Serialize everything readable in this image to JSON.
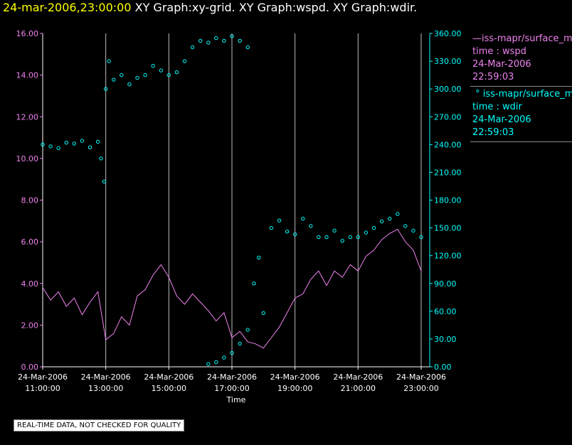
{
  "header": {
    "timestamp": "24-mar-2006,23:00:00",
    "graphs": "XY Graph:xy-grid.  XY Graph:wspd.  XY Graph:wdir."
  },
  "colors": {
    "wspd": "#ee82ee",
    "wdir": "#00ffff",
    "grid": "#bbbbbb",
    "axis": "#ffffff"
  },
  "legend": {
    "s1": {
      "name": "iss-mapr/surface_mapr",
      "var": "time : wspd",
      "date": "24-Mar-2006",
      "time": "22:59:03"
    },
    "s2": {
      "name": "iss-mapr/surface_mapr",
      "var": "time : wdir",
      "date": "24-Mar-2006",
      "time": "22:59:03"
    }
  },
  "qc_note": "REAL-TIME DATA, NOT CHECKED FOR QUALITY",
  "chart_data": {
    "type": "line",
    "xlabel": "Time",
    "xlim": [
      11.0,
      23.0
    ],
    "x_ticks": [
      {
        "v": 11,
        "d": "24-Mar-2006",
        "t": "11:00:00"
      },
      {
        "v": 13,
        "d": "24-Mar-2006",
        "t": "13:00:00"
      },
      {
        "v": 15,
        "d": "24-Mar-2006",
        "t": "15:00:00"
      },
      {
        "v": 17,
        "d": "24-Mar-2006",
        "t": "17:00:00"
      },
      {
        "v": 19,
        "d": "24-Mar-2006",
        "t": "19:00:00"
      },
      {
        "v": 21,
        "d": "24-Mar-2006",
        "t": "21:00:00"
      },
      {
        "v": 23,
        "d": "24-Mar-2006",
        "t": "23:00:00"
      }
    ],
    "left_axis": {
      "ylim": [
        0,
        16
      ],
      "ticks": [
        "0.00",
        "2.00",
        "4.00",
        "6.00",
        "8.00",
        "10.00",
        "12.00",
        "14.00",
        "16.00"
      ]
    },
    "right_axis": {
      "ylim": [
        0,
        360
      ],
      "ticks": [
        "0.00",
        "30.00",
        "60.00",
        "90.00",
        "120.00",
        "150.00",
        "180.00",
        "210.00",
        "240.00",
        "270.00",
        "300.00",
        "330.00",
        "360.00"
      ]
    },
    "series": [
      {
        "name": "wspd",
        "axis": "left",
        "style": "line",
        "x": [
          11.0,
          11.25,
          11.5,
          11.75,
          12.0,
          12.25,
          12.5,
          12.75,
          13.0,
          13.25,
          13.5,
          13.75,
          14.0,
          14.25,
          14.5,
          14.75,
          15.0,
          15.25,
          15.5,
          15.75,
          16.0,
          16.25,
          16.5,
          16.75,
          17.0,
          17.25,
          17.5,
          17.75,
          18.0,
          18.25,
          18.5,
          18.75,
          19.0,
          19.25,
          19.5,
          19.75,
          20.0,
          20.25,
          20.5,
          20.75,
          21.0,
          21.25,
          21.5,
          21.75,
          22.0,
          22.25,
          22.5,
          22.75,
          23.0
        ],
        "y": [
          3.8,
          3.2,
          3.6,
          2.9,
          3.3,
          2.5,
          3.1,
          3.6,
          1.3,
          1.6,
          2.4,
          2.0,
          3.4,
          3.7,
          4.4,
          4.9,
          4.3,
          3.4,
          3.0,
          3.5,
          3.1,
          2.7,
          2.2,
          2.6,
          1.4,
          1.7,
          1.2,
          1.1,
          0.9,
          1.4,
          1.9,
          2.6,
          3.3,
          3.5,
          4.2,
          4.6,
          3.9,
          4.6,
          4.3,
          4.9,
          4.6,
          5.3,
          5.6,
          6.1,
          6.4,
          6.6,
          6.0,
          5.6,
          4.6
        ]
      },
      {
        "name": "wdir",
        "axis": "right",
        "style": "markers",
        "x": [
          11.0,
          11.25,
          11.5,
          11.75,
          12.0,
          12.25,
          12.5,
          12.75,
          12.85,
          12.95,
          13.0,
          13.1,
          13.25,
          13.5,
          13.75,
          14.0,
          14.25,
          14.5,
          14.75,
          15.0,
          15.25,
          15.5,
          15.75,
          16.0,
          16.25,
          16.5,
          16.75,
          17.0,
          17.25,
          17.5,
          16.25,
          16.5,
          16.75,
          17.0,
          17.25,
          17.5,
          17.7,
          17.85,
          18.0,
          18.25,
          18.5,
          18.75,
          19.0,
          19.25,
          19.5,
          19.75,
          20.0,
          20.25,
          20.5,
          20.75,
          21.0,
          21.25,
          21.5,
          21.75,
          22.0,
          22.25,
          22.5,
          22.75,
          23.0
        ],
        "y": [
          240,
          238,
          236,
          242,
          241,
          244,
          237,
          243,
          225,
          200,
          300,
          330,
          310,
          315,
          305,
          312,
          315,
          325,
          320,
          315,
          318,
          330,
          345,
          352,
          350,
          355,
          352,
          357,
          352,
          345,
          3,
          5,
          10,
          15,
          25,
          40,
          90,
          118,
          58,
          150,
          158,
          146,
          143,
          160,
          152,
          140,
          140,
          147,
          136,
          140,
          140,
          145,
          150,
          157,
          160,
          165,
          152,
          147,
          140
        ]
      }
    ]
  }
}
